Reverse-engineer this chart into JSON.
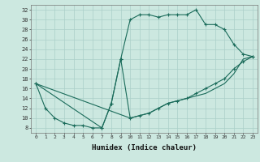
{
  "xlabel": "Humidex (Indice chaleur)",
  "bg_color": "#cce8e0",
  "line_color": "#1a6b5a",
  "grid_color": "#aacfc8",
  "xlim": [
    -0.5,
    23.5
  ],
  "ylim": [
    7,
    33
  ],
  "xticks": [
    0,
    1,
    2,
    3,
    4,
    5,
    6,
    7,
    8,
    9,
    10,
    11,
    12,
    13,
    14,
    15,
    16,
    17,
    18,
    19,
    20,
    21,
    22,
    23
  ],
  "yticks": [
    8,
    10,
    12,
    14,
    16,
    18,
    20,
    22,
    24,
    26,
    28,
    30,
    32
  ],
  "line1_x": [
    0,
    1,
    2,
    3,
    4,
    5,
    6,
    7,
    8,
    9,
    10,
    11,
    12,
    13,
    14,
    15,
    16,
    17,
    18,
    19,
    20,
    21,
    22,
    23
  ],
  "line1_y": [
    17,
    12,
    10,
    9,
    8.5,
    8.5,
    8,
    8,
    13,
    22,
    30,
    31,
    31,
    30.5,
    31,
    31,
    31,
    32,
    29,
    29,
    28,
    25,
    23,
    22.5
  ],
  "line2_x": [
    0,
    7,
    8,
    9,
    10,
    11,
    12,
    13,
    14,
    15,
    16,
    17,
    18,
    19,
    20,
    21,
    22,
    23
  ],
  "line2_y": [
    17,
    8,
    13,
    22,
    10,
    10.5,
    11,
    12,
    13,
    13.5,
    14,
    15,
    16,
    17,
    18,
    20,
    21.5,
    22.5
  ],
  "line3_x": [
    0,
    10,
    11,
    12,
    13,
    14,
    15,
    16,
    17,
    18,
    19,
    20,
    21,
    22,
    23
  ],
  "line3_y": [
    17,
    10,
    10.5,
    11,
    12,
    13,
    13.5,
    14,
    14.5,
    15,
    16,
    17,
    19,
    22,
    22.5
  ]
}
